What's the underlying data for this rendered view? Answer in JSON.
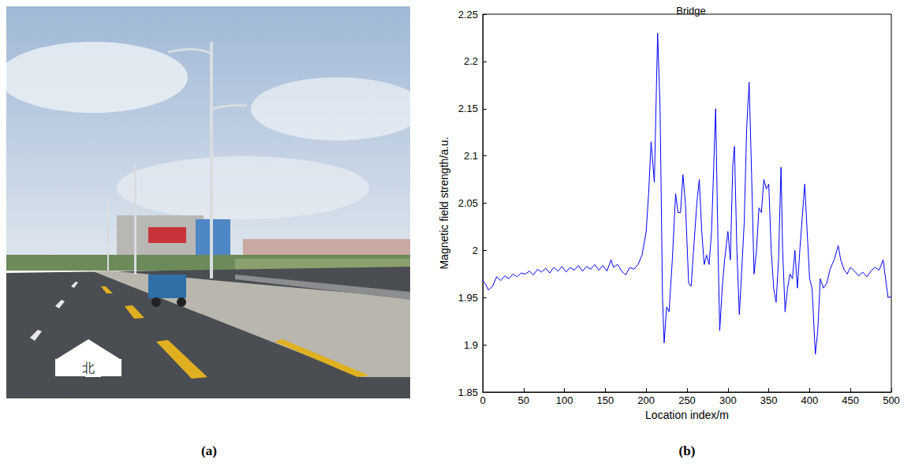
{
  "chart_data": {
    "type": "line",
    "title": "Bridge",
    "x_label": "Location index/m",
    "y_label": "Magnetic field strength/a.u.",
    "x": [
      0,
      3,
      7,
      12,
      17,
      22,
      27,
      32,
      37,
      42,
      47,
      52,
      57,
      62,
      67,
      72,
      77,
      82,
      87,
      92,
      97,
      102,
      107,
      112,
      117,
      122,
      127,
      132,
      137,
      142,
      147,
      152,
      157,
      160,
      165,
      170,
      175,
      180,
      185,
      190,
      195,
      200,
      203,
      206,
      210,
      214,
      217,
      220,
      222,
      225,
      228,
      232,
      236,
      239,
      242,
      245,
      248,
      252,
      255,
      258,
      262,
      265,
      268,
      271,
      274,
      277,
      280,
      285,
      288,
      290,
      293,
      296,
      300,
      303,
      306,
      308,
      311,
      314,
      317,
      320,
      323,
      326,
      329,
      332,
      335,
      338,
      341,
      344,
      347,
      350,
      353,
      356,
      359,
      362,
      365,
      367,
      370,
      373,
      376,
      379,
      382,
      385,
      388,
      391,
      394,
      397,
      400,
      403,
      407,
      410,
      413,
      417,
      421,
      425,
      430,
      435,
      438,
      442,
      446,
      450,
      455,
      460,
      465,
      470,
      475,
      480,
      485,
      490,
      493,
      496,
      500
    ],
    "values": [
      1.968,
      1.965,
      1.958,
      1.962,
      1.972,
      1.968,
      1.973,
      1.97,
      1.975,
      1.972,
      1.976,
      1.975,
      1.978,
      1.974,
      1.98,
      1.977,
      1.981,
      1.976,
      1.982,
      1.978,
      1.983,
      1.977,
      1.982,
      1.979,
      1.984,
      1.978,
      1.983,
      1.98,
      1.985,
      1.979,
      1.984,
      1.978,
      1.99,
      1.982,
      1.985,
      1.978,
      1.974,
      1.982,
      1.98,
      1.985,
      1.995,
      2.02,
      2.06,
      2.115,
      2.072,
      2.23,
      2.15,
      1.95,
      1.902,
      1.94,
      1.935,
      1.99,
      2.06,
      2.04,
      2.04,
      2.08,
      2.05,
      1.965,
      1.962,
      2.0,
      2.05,
      2.075,
      2.02,
      1.985,
      1.995,
      1.985,
      2.02,
      2.15,
      2.0,
      1.915,
      1.96,
      1.99,
      2.02,
      1.99,
      2.09,
      2.11,
      2.0,
      1.932,
      1.98,
      2.03,
      2.13,
      2.178,
      2.08,
      1.975,
      2.0,
      2.045,
      2.04,
      2.075,
      2.065,
      2.07,
      2.0,
      1.96,
      1.945,
      1.99,
      2.088,
      2.0,
      1.935,
      1.96,
      1.975,
      1.97,
      2.0,
      1.96,
      2.0,
      2.035,
      2.07,
      2.02,
      1.97,
      1.96,
      1.89,
      1.915,
      1.97,
      1.96,
      1.965,
      1.98,
      1.99,
      2.005,
      1.99,
      1.98,
      1.975,
      1.982,
      1.978,
      1.973,
      1.977,
      1.972,
      1.978,
      1.982,
      1.979,
      1.99,
      1.97,
      1.95,
      1.951
    ],
    "color": "#0000ff",
    "xlim": [
      0,
      500
    ],
    "xticks": [
      0,
      50,
      100,
      150,
      200,
      250,
      300,
      350,
      400,
      450,
      500
    ],
    "ylim": [
      1.85,
      2.25
    ],
    "yticks": [
      1.85,
      1.9,
      1.95,
      2,
      2.05,
      2.1,
      2.15,
      2.2,
      2.25
    ],
    "grid": false
  },
  "panel_labels": [
    "(a)",
    "(b)"
  ],
  "photo": {
    "road_marking": "北"
  }
}
